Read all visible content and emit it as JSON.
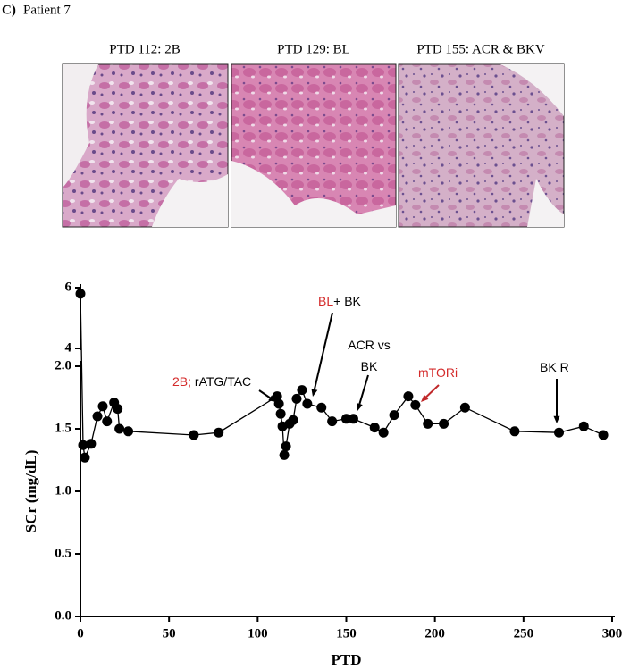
{
  "panel": {
    "label": "C)",
    "title": "Patient 7"
  },
  "images": [
    {
      "caption": "PTD 112: 2B"
    },
    {
      "caption": "PTD 129: BL"
    },
    {
      "caption": "PTD 155: ACR & BKV"
    }
  ],
  "chart_data": {
    "type": "line",
    "xlabel": "PTD",
    "ylabel": "SCr (mg/dL)",
    "xlim": [
      0,
      300
    ],
    "xticks": [
      0,
      50,
      100,
      150,
      200,
      250,
      300
    ],
    "ylim": [
      0,
      6
    ],
    "ybreak": [
      2,
      4
    ],
    "yticks": [
      {
        "value": 0,
        "label": "0.0"
      },
      {
        "value": 0.5,
        "label": "0.5"
      },
      {
        "value": 1,
        "label": "1.0"
      },
      {
        "value": 1.5,
        "label": "1.5"
      },
      {
        "value": 2,
        "label": "2.0"
      },
      4,
      6
    ],
    "color": "#000000",
    "x": [
      0,
      1.5,
      2.5,
      6,
      9.6,
      12.6,
      15,
      19,
      21,
      22,
      27,
      64,
      78,
      111,
      112,
      113,
      114,
      115,
      116,
      118,
      120,
      122,
      125,
      128,
      136,
      142,
      150,
      154,
      166,
      171,
      177,
      185,
      189,
      196,
      205,
      217,
      245,
      270,
      284,
      295
    ],
    "values": [
      5.8,
      1.37,
      1.27,
      1.38,
      1.6,
      1.68,
      1.56,
      1.71,
      1.66,
      1.5,
      1.48,
      1.45,
      1.47,
      1.76,
      1.7,
      1.62,
      1.52,
      1.29,
      1.36,
      1.54,
      1.57,
      1.74,
      1.81,
      1.7,
      1.67,
      1.56,
      1.58,
      1.58,
      1.51,
      1.47,
      1.61,
      1.76,
      1.69,
      1.54,
      1.54,
      1.67,
      1.48,
      1.47,
      1.52,
      1.45
    ],
    "annotations": [
      {
        "lines": [
          [
            {
              "text": "2B;",
              "color": "#d42a2a"
            },
            {
              "text": " rATG/TAC",
              "color": "#000000"
            }
          ]
        ]
      },
      {
        "lines": [
          [
            {
              "text": "BL",
              "color": "#d42a2a"
            },
            {
              "text": "+ BK",
              "color": "#000000"
            }
          ]
        ]
      },
      {
        "lines": [
          [
            {
              "text": "ACR vs",
              "color": "#000000"
            }
          ],
          [
            {
              "text": "BK",
              "color": "#000000"
            }
          ]
        ]
      },
      {
        "lines": [
          [
            {
              "text": "mTORi",
              "color": "#d42a2a"
            }
          ]
        ]
      },
      {
        "lines": [
          [
            {
              "text": "BK R",
              "color": "#000000"
            }
          ]
        ]
      }
    ]
  }
}
